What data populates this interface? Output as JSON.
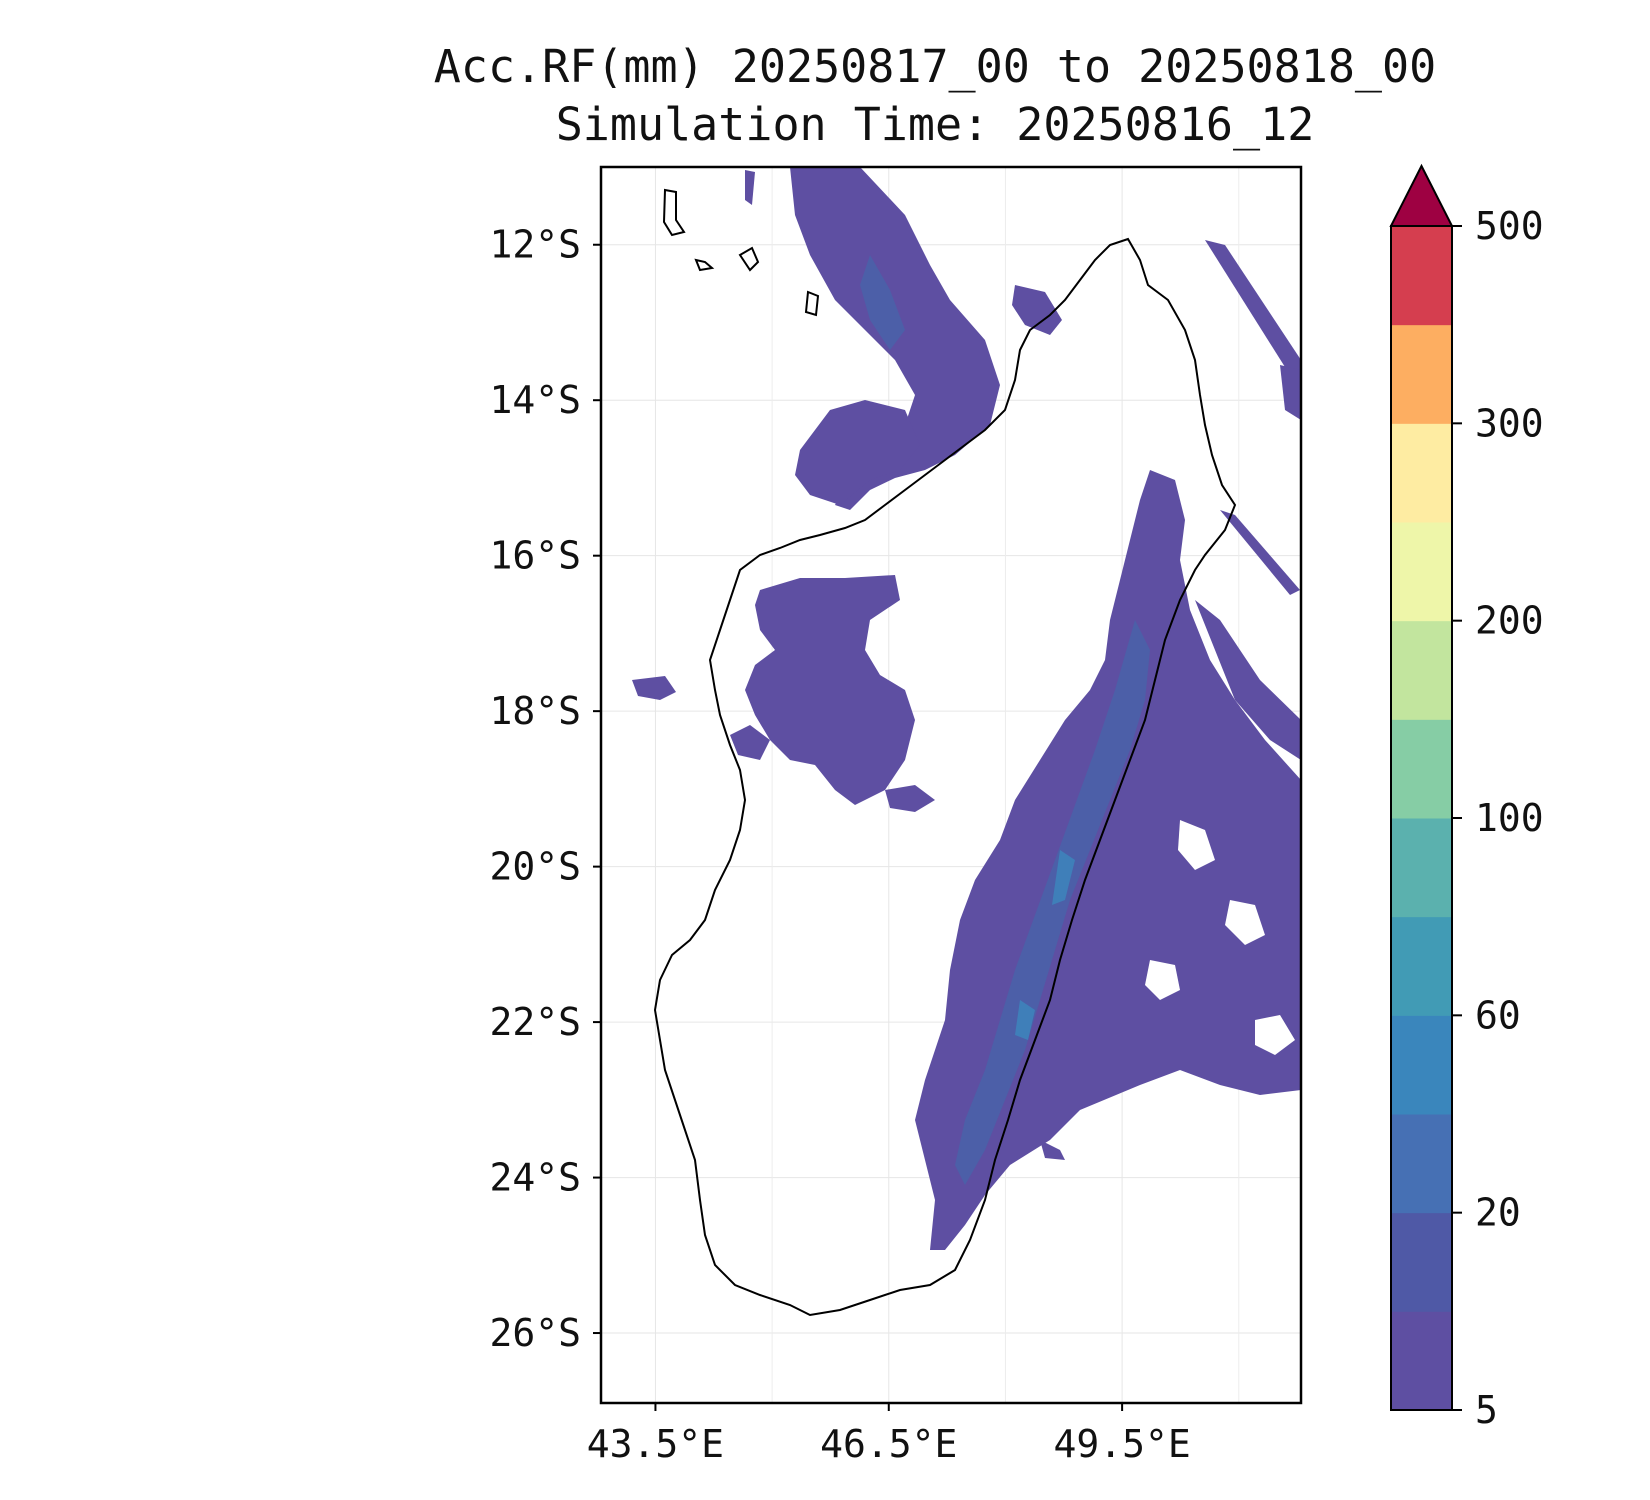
{
  "title": {
    "line1": "Acc.RF(mm) 20250817_00 to 20250818_00",
    "line2": "Simulation Time: 20250816_12"
  },
  "map": {
    "extent": {
      "lon_min": 42.8,
      "lon_max": 51.8,
      "lat_min": -26.9,
      "lat_max": -11.0
    },
    "lat_ticks": [
      {
        "value": -12,
        "label": "12°S"
      },
      {
        "value": -14,
        "label": "14°S"
      },
      {
        "value": -16,
        "label": "16°S"
      },
      {
        "value": -18,
        "label": "18°S"
      },
      {
        "value": -20,
        "label": "20°S"
      },
      {
        "value": -22,
        "label": "22°S"
      },
      {
        "value": -24,
        "label": "24°S"
      },
      {
        "value": -26,
        "label": "26°S"
      }
    ],
    "lon_ticks": [
      {
        "value": 43.5,
        "label": "43.5°E"
      },
      {
        "value": 46.5,
        "label": "46.5°E"
      },
      {
        "value": 49.5,
        "label": "49.5°E"
      }
    ],
    "grid": true,
    "coastline_color": "#000000",
    "rain_colors": {
      "light": "#5e4fa2",
      "moderate": "#4c5fa8",
      "heavy": "#3f7fb9"
    }
  },
  "colorbar": {
    "levels": [
      {
        "color": "#5e4fa2"
      },
      {
        "color": "#4f59a6"
      },
      {
        "color": "#4670b4"
      },
      {
        "color": "#3a86bc"
      },
      {
        "color": "#419bb5"
      },
      {
        "color": "#5bb1ae"
      },
      {
        "color": "#86cda5"
      },
      {
        "color": "#c2e59e"
      },
      {
        "color": "#eef6a9"
      },
      {
        "color": "#feeca2"
      },
      {
        "color": "#fdae61"
      },
      {
        "color": "#d53e4f"
      }
    ],
    "extend_color": "#9e0142",
    "ticks": [
      "5",
      "20",
      "60",
      "100",
      "200",
      "300",
      "500"
    ]
  }
}
